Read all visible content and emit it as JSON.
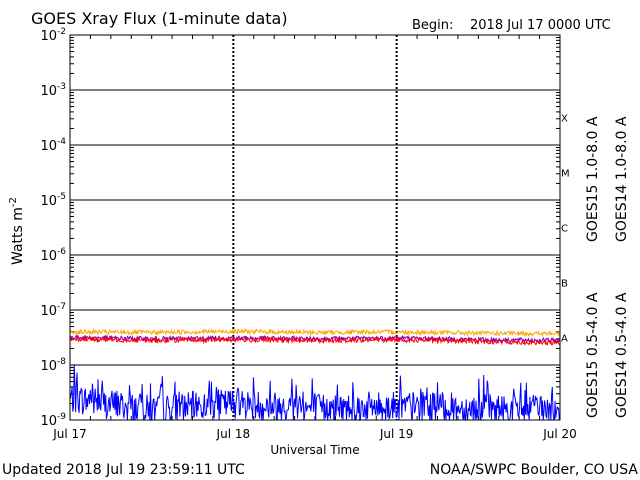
{
  "header": {
    "title": "GOES Xray Flux (1-minute data)",
    "begin_label": "Begin:",
    "begin_value": "2018 Jul 17 0000 UTC"
  },
  "footer": {
    "updated": "Updated 2018 Jul 19 23:59:11 UTC",
    "credit": "NOAA/SWPC Boulder, CO USA"
  },
  "axes": {
    "xlabel": "Universal Time",
    "ylabel_base": "Watts m",
    "ylabel_exp": "-2"
  },
  "colors": {
    "goes15_long": "#ff0000",
    "goes14_long": "#ffa500",
    "goes15_short": "#0000ff",
    "goes14_short": "#7a00c8",
    "grid": "#000000"
  },
  "chart_data": {
    "type": "line",
    "title": "GOES Xray Flux (1-minute data)",
    "xlabel": "Universal Time",
    "ylabel": "Watts m-2",
    "yscale": "log",
    "ylim": [
      1e-09,
      0.01
    ],
    "xlim": [
      "2018 Jul 17 0000 UTC",
      "2018 Jul 20 0000 UTC"
    ],
    "x_ticks": [
      "Jul 17",
      "Jul 18",
      "Jul 19",
      "Jul 20"
    ],
    "y_ticks": [
      {
        "base": "10",
        "exp": "-9"
      },
      {
        "base": "10",
        "exp": "-8"
      },
      {
        "base": "10",
        "exp": "-7"
      },
      {
        "base": "10",
        "exp": "-6"
      },
      {
        "base": "10",
        "exp": "-5"
      },
      {
        "base": "10",
        "exp": "-4"
      },
      {
        "base": "10",
        "exp": "-3"
      },
      {
        "base": "10",
        "exp": "-2"
      }
    ],
    "flare_classes": [
      {
        "label": "A",
        "value": 1e-08
      },
      {
        "label": "B",
        "value": 1e-07
      },
      {
        "label": "C",
        "value": 1e-06
      },
      {
        "label": "M",
        "value": 1e-05
      },
      {
        "label": "X",
        "value": 0.0001
      }
    ],
    "grid": true,
    "legend": "right-vertical",
    "x": [
      "Jul 17 00:00",
      "Jul 17 12:00",
      "Jul 18 00:00",
      "Jul 18 12:00",
      "Jul 19 00:00",
      "Jul 19 12:00",
      "Jul 20 00:00"
    ],
    "series": [
      {
        "name": "GOES15 1.0-8.0 A",
        "color": "#ff0000",
        "values": [
          3e-08,
          2.8e-08,
          2.9e-08,
          2.8e-08,
          2.9e-08,
          2.7e-08,
          2.5e-08
        ]
      },
      {
        "name": "GOES14 1.0-8.0 A",
        "color": "#ffa500",
        "values": [
          4e-08,
          3.9e-08,
          4.1e-08,
          3.9e-08,
          4e-08,
          3.8e-08,
          3.7e-08
        ]
      },
      {
        "name": "GOES15 0.5-4.0 A",
        "color": "#0000ff",
        "values": [
          2.5e-09,
          1.5e-09,
          2e-09,
          1.6e-09,
          1.8e-09,
          1.6e-09,
          1.5e-09
        ]
      },
      {
        "name": "GOES14 0.5-4.0 A",
        "color": "#7a00c8",
        "values": [
          3.2e-08,
          3e-08,
          3.1e-08,
          3e-08,
          3.1e-08,
          2.9e-08,
          2.8e-08
        ]
      }
    ]
  }
}
